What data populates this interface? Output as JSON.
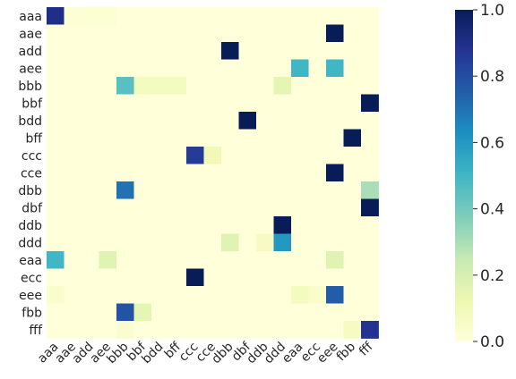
{
  "chart_data": {
    "type": "heatmap",
    "title": "",
    "xlabel": "",
    "ylabel": "",
    "rows": [
      "aaa",
      "aae",
      "add",
      "aee",
      "bbb",
      "bbf",
      "bdd",
      "bff",
      "ccc",
      "cce",
      "dbb",
      "dbf",
      "ddb",
      "ddd",
      "eaa",
      "ecc",
      "eee",
      "fbb",
      "fff"
    ],
    "columns": [
      "aaa",
      "aae",
      "add",
      "aee",
      "bbb",
      "bbf",
      "bdd",
      "bff",
      "ccc",
      "cce",
      "dbb",
      "dbf",
      "ddb",
      "ddd",
      "eaa",
      "ecc",
      "eee",
      "fbb",
      "fff"
    ],
    "values": [
      [
        0.9,
        0.02,
        0.02,
        0.02,
        0,
        0,
        0,
        0,
        0,
        0,
        0,
        0,
        0,
        0,
        0,
        0,
        0,
        0,
        0
      ],
      [
        0,
        0,
        0,
        0,
        0,
        0,
        0,
        0,
        0,
        0,
        0,
        0,
        0,
        0,
        0,
        0,
        1.0,
        0,
        0
      ],
      [
        0,
        0,
        0,
        0,
        0,
        0,
        0,
        0,
        0,
        0,
        1.0,
        0,
        0,
        0,
        0,
        0,
        0,
        0,
        0
      ],
      [
        0,
        0,
        0,
        0,
        0,
        0,
        0,
        0,
        0,
        0,
        0,
        0,
        0,
        0,
        0.5,
        0,
        0.5,
        0,
        0
      ],
      [
        0,
        0,
        0,
        0,
        0.45,
        0.08,
        0.08,
        0.08,
        0,
        0,
        0,
        0,
        0,
        0.15,
        0,
        0,
        0,
        0,
        0
      ],
      [
        0,
        0,
        0,
        0,
        0,
        0,
        0,
        0,
        0,
        0,
        0,
        0,
        0,
        0,
        0,
        0,
        0,
        0,
        1.0
      ],
      [
        0,
        0,
        0,
        0,
        0,
        0,
        0,
        0,
        0,
        0,
        0,
        1.0,
        0,
        0,
        0,
        0,
        0,
        0,
        0
      ],
      [
        0,
        0,
        0,
        0,
        0,
        0,
        0,
        0,
        0,
        0,
        0,
        0,
        0,
        0,
        0,
        0,
        0,
        1.0,
        0
      ],
      [
        0,
        0,
        0,
        0,
        0,
        0,
        0,
        0,
        0.85,
        0.1,
        0,
        0,
        0,
        0,
        0,
        0,
        0,
        0,
        0
      ],
      [
        0,
        0,
        0,
        0,
        0,
        0,
        0,
        0,
        0,
        0,
        0,
        0,
        0,
        0,
        0,
        0,
        1.0,
        0,
        0
      ],
      [
        0,
        0,
        0,
        0,
        0.7,
        0,
        0,
        0,
        0,
        0,
        0,
        0,
        0,
        0,
        0,
        0,
        0,
        0,
        0.3
      ],
      [
        0,
        0,
        0,
        0,
        0,
        0,
        0,
        0,
        0,
        0,
        0,
        0,
        0,
        0,
        0,
        0,
        0,
        0,
        1.0
      ],
      [
        0,
        0,
        0,
        0,
        0,
        0,
        0,
        0,
        0,
        0,
        0,
        0,
        0,
        1.0,
        0,
        0,
        0,
        0,
        0
      ],
      [
        0,
        0,
        0,
        0,
        0,
        0,
        0,
        0,
        0,
        0,
        0.17,
        0,
        0.07,
        0.6,
        0,
        0,
        0,
        0,
        0
      ],
      [
        0.5,
        0,
        0,
        0.17,
        0,
        0,
        0,
        0,
        0,
        0,
        0,
        0,
        0,
        0,
        0,
        0,
        0.17,
        0,
        0
      ],
      [
        0,
        0,
        0,
        0,
        0,
        0,
        0,
        0,
        1.0,
        0,
        0,
        0,
        0,
        0,
        0,
        0,
        0,
        0,
        0
      ],
      [
        0.04,
        0,
        0,
        0,
        0,
        0,
        0,
        0,
        0,
        0,
        0,
        0,
        0,
        0,
        0.08,
        0.04,
        0.75,
        0,
        0
      ],
      [
        0,
        0,
        0,
        0,
        0.78,
        0.15,
        0,
        0,
        0,
        0,
        0,
        0,
        0,
        0,
        0,
        0,
        0,
        0,
        0
      ],
      [
        0,
        0,
        0,
        0,
        0.03,
        0,
        0,
        0,
        0,
        0,
        0,
        0,
        0,
        0,
        0,
        0,
        0,
        0.07,
        0.88
      ]
    ],
    "colorbar": {
      "cmap": "YlGnBu",
      "range": [
        0,
        1
      ],
      "ticks": [
        "0.0",
        "0.2",
        "0.4",
        "0.6",
        "0.8",
        "1.0"
      ]
    }
  }
}
